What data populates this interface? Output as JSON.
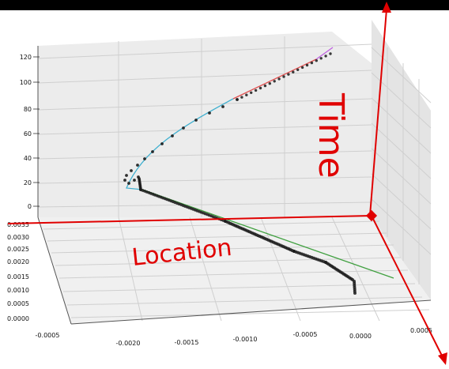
{
  "chart_data": {
    "type": "scatter",
    "title": "",
    "view": "3d",
    "time_ticks": [
      "120",
      "100",
      "80",
      "60",
      "40",
      "20",
      "0"
    ],
    "y_ticks": [
      "0.0035",
      "0.0030",
      "0.0025",
      "0.0020",
      "0.0015",
      "0.0010",
      "0.0005",
      "0.0000"
    ],
    "x_ticks": [
      "-0.0005",
      "-0.0020",
      "-0.0015",
      "-0.0010",
      "-0.0005",
      "0.0000",
      "0.0005"
    ],
    "annotations": {
      "time": "Time",
      "location": "Location"
    },
    "colors": {
      "annotation": "#e00000",
      "points": "#1a1a1a",
      "fit_magenta": "#c060e0",
      "fit_red": "#e05050",
      "fit_cyan": "#40b0d0",
      "fit_green": "#40a040",
      "pane": "#ebebeb",
      "grid": "#cfcfcf"
    },
    "grid": true
  }
}
